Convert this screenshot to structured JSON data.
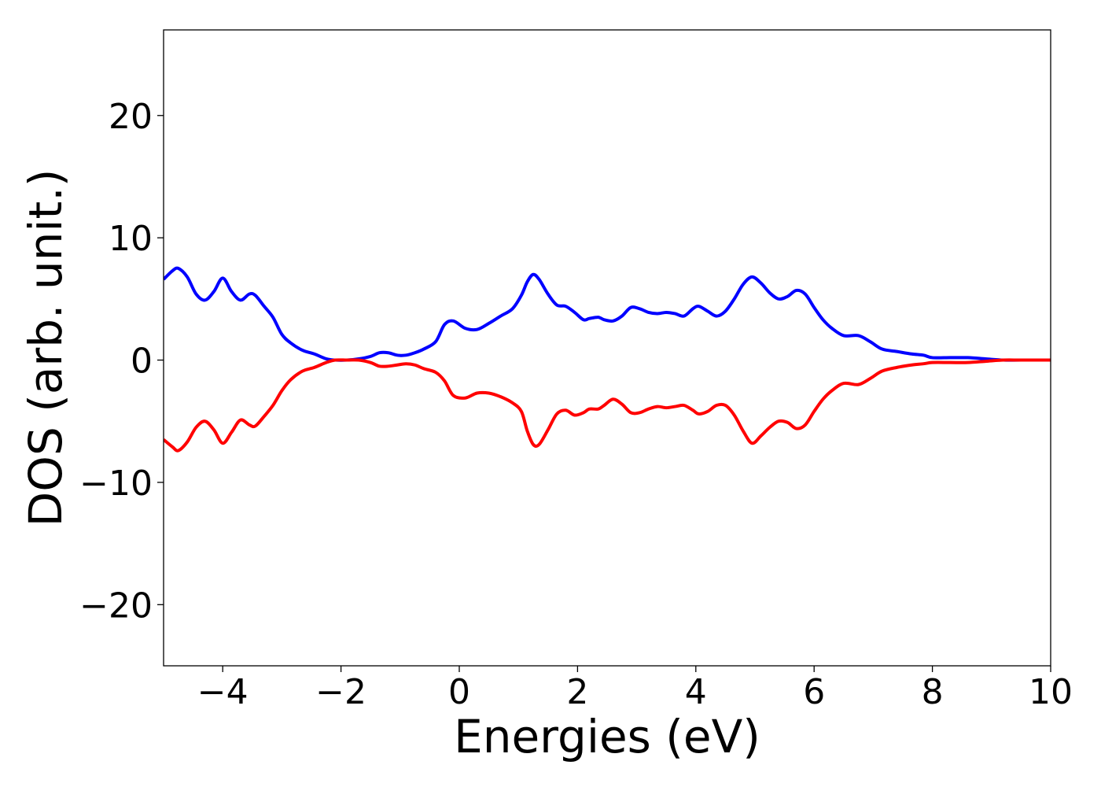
{
  "chart_data": {
    "type": "line",
    "title": "",
    "xlabel": "Energies (eV)",
    "ylabel": "DOS (arb. unit.)",
    "xlim": [
      -5,
      10
    ],
    "ylim": [
      -25,
      27
    ],
    "xticks": [
      -4,
      -2,
      0,
      2,
      4,
      6,
      8,
      10
    ],
    "xtick_labels": [
      "−4",
      "−2",
      "0",
      "2",
      "4",
      "6",
      "8",
      "10"
    ],
    "yticks": [
      -20,
      -10,
      0,
      10,
      20
    ],
    "ytick_labels": [
      "−20",
      "−10",
      "0",
      "10",
      "20"
    ],
    "grid": false,
    "legend": false,
    "series": [
      {
        "color": "#0000ff",
        "x": [
          -5.0,
          -4.85,
          -4.75,
          -4.6,
          -4.45,
          -4.3,
          -4.15,
          -4.0,
          -3.85,
          -3.7,
          -3.55,
          -3.45,
          -3.3,
          -3.15,
          -3.0,
          -2.85,
          -2.65,
          -2.45,
          -2.25,
          -2.1,
          -1.9,
          -1.7,
          -1.5,
          -1.35,
          -1.2,
          -1.05,
          -0.9,
          -0.75,
          -0.6,
          -0.4,
          -0.25,
          -0.1,
          0.1,
          0.3,
          0.5,
          0.7,
          0.9,
          1.05,
          1.15,
          1.25,
          1.35,
          1.5,
          1.65,
          1.8,
          1.95,
          2.1,
          2.2,
          2.35,
          2.45,
          2.6,
          2.75,
          2.9,
          3.05,
          3.2,
          3.35,
          3.5,
          3.65,
          3.8,
          3.95,
          4.05,
          4.2,
          4.35,
          4.5,
          4.65,
          4.8,
          4.95,
          5.1,
          5.25,
          5.4,
          5.55,
          5.7,
          5.85,
          6.0,
          6.15,
          6.3,
          6.5,
          6.75,
          6.95,
          7.15,
          7.4,
          7.65,
          7.85,
          8.0,
          8.3,
          8.6,
          8.9,
          9.2,
          9.5,
          10.0
        ],
        "y": [
          6.6,
          7.3,
          7.5,
          6.8,
          5.4,
          4.9,
          5.6,
          6.7,
          5.6,
          4.9,
          5.4,
          5.3,
          4.4,
          3.5,
          2.1,
          1.4,
          0.8,
          0.5,
          0.1,
          0.0,
          0.0,
          0.1,
          0.3,
          0.6,
          0.6,
          0.4,
          0.4,
          0.6,
          0.9,
          1.5,
          2.9,
          3.2,
          2.6,
          2.5,
          3.0,
          3.6,
          4.2,
          5.3,
          6.4,
          7.0,
          6.6,
          5.4,
          4.5,
          4.4,
          3.9,
          3.3,
          3.4,
          3.5,
          3.3,
          3.2,
          3.6,
          4.3,
          4.2,
          3.9,
          3.8,
          3.9,
          3.8,
          3.6,
          4.2,
          4.4,
          4.0,
          3.6,
          4.0,
          5.0,
          6.2,
          6.8,
          6.3,
          5.5,
          5.0,
          5.2,
          5.7,
          5.4,
          4.3,
          3.3,
          2.6,
          2.0,
          2.0,
          1.5,
          0.9,
          0.7,
          0.5,
          0.4,
          0.2,
          0.2,
          0.2,
          0.1,
          0.0,
          0.0,
          0.0
        ]
      },
      {
        "color": "#ff0000",
        "x": [
          -5.0,
          -4.85,
          -4.75,
          -4.6,
          -4.45,
          -4.3,
          -4.15,
          -4.0,
          -3.85,
          -3.7,
          -3.55,
          -3.45,
          -3.3,
          -3.15,
          -3.0,
          -2.85,
          -2.65,
          -2.45,
          -2.25,
          -2.1,
          -1.9,
          -1.7,
          -1.5,
          -1.35,
          -1.2,
          -1.05,
          -0.9,
          -0.75,
          -0.6,
          -0.4,
          -0.25,
          -0.1,
          0.1,
          0.3,
          0.5,
          0.7,
          0.9,
          1.05,
          1.15,
          1.25,
          1.35,
          1.5,
          1.65,
          1.8,
          1.95,
          2.1,
          2.2,
          2.35,
          2.45,
          2.6,
          2.75,
          2.9,
          3.05,
          3.2,
          3.35,
          3.5,
          3.65,
          3.8,
          3.95,
          4.05,
          4.2,
          4.35,
          4.5,
          4.65,
          4.8,
          4.95,
          5.1,
          5.25,
          5.4,
          5.55,
          5.7,
          5.85,
          6.0,
          6.15,
          6.3,
          6.5,
          6.75,
          6.95,
          7.15,
          7.4,
          7.65,
          7.85,
          8.0,
          8.3,
          8.6,
          8.9,
          9.2,
          9.5,
          10.0
        ],
        "y": [
          -6.5,
          -7.1,
          -7.4,
          -6.7,
          -5.5,
          -5.0,
          -5.7,
          -6.8,
          -5.9,
          -4.9,
          -5.3,
          -5.4,
          -4.6,
          -3.7,
          -2.5,
          -1.6,
          -0.9,
          -0.6,
          -0.2,
          0.0,
          0.0,
          0.0,
          -0.2,
          -0.5,
          -0.5,
          -0.4,
          -0.3,
          -0.4,
          -0.7,
          -1.0,
          -1.7,
          -2.9,
          -3.1,
          -2.7,
          -2.7,
          -3.0,
          -3.5,
          -4.2,
          -5.8,
          -6.9,
          -6.9,
          -5.7,
          -4.4,
          -4.1,
          -4.5,
          -4.3,
          -4.0,
          -4.0,
          -3.7,
          -3.2,
          -3.6,
          -4.3,
          -4.3,
          -4.0,
          -3.8,
          -3.9,
          -3.8,
          -3.7,
          -4.1,
          -4.4,
          -4.2,
          -3.7,
          -3.7,
          -4.5,
          -5.8,
          -6.8,
          -6.2,
          -5.5,
          -5.0,
          -5.1,
          -5.6,
          -5.3,
          -4.2,
          -3.2,
          -2.5,
          -1.9,
          -2.0,
          -1.5,
          -0.9,
          -0.6,
          -0.4,
          -0.3,
          -0.2,
          -0.2,
          -0.2,
          -0.1,
          0.0,
          0.0,
          0.0
        ]
      }
    ]
  }
}
